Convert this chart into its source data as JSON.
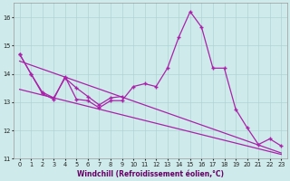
{
  "xlabel": "Windchill (Refroidissement éolien,°C)",
  "background_color": "#ceeaea",
  "grid_color": "#aed4d4",
  "line_color": "#aa22aa",
  "xlim": [
    -0.5,
    23.5
  ],
  "ylim": [
    11.0,
    16.5
  ],
  "yticks": [
    11,
    12,
    13,
    14,
    15,
    16
  ],
  "xticks": [
    0,
    1,
    2,
    3,
    4,
    5,
    6,
    7,
    8,
    9,
    10,
    11,
    12,
    13,
    14,
    15,
    16,
    17,
    18,
    19,
    20,
    21,
    22,
    23
  ],
  "series_main_x": [
    0,
    1,
    2,
    3,
    4,
    5,
    6,
    7,
    8,
    9,
    10,
    11,
    12,
    13,
    14,
    15,
    16,
    17,
    18,
    19,
    20,
    21,
    22,
    23
  ],
  "series_main_y": [
    14.7,
    14.0,
    13.3,
    13.1,
    13.9,
    13.1,
    13.05,
    12.8,
    13.05,
    13.05,
    13.55,
    13.65,
    13.55,
    14.2,
    15.3,
    16.2,
    15.65,
    14.2,
    14.2,
    12.75,
    12.1,
    11.5,
    11.7,
    11.45
  ],
  "series_short_x": [
    0,
    1,
    2,
    3,
    4,
    5,
    6,
    7,
    8,
    9
  ],
  "series_short_y": [
    14.7,
    14.0,
    13.35,
    13.15,
    13.85,
    13.5,
    13.2,
    12.9,
    13.15,
    13.2
  ],
  "trend1_x": [
    0,
    23
  ],
  "trend1_y": [
    14.45,
    11.2
  ],
  "trend2_x": [
    0,
    23
  ],
  "trend2_y": [
    13.45,
    11.15
  ]
}
